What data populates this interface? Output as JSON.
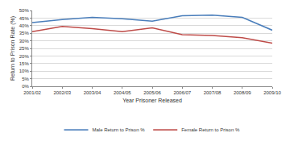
{
  "chart_data": {
    "type": "line",
    "x_label": "Year Prisoner Released",
    "y_label": "Return to Prison Rate (%)",
    "categories": [
      "2001/02",
      "2002/03",
      "2003/04",
      "2004/05",
      "2005/06",
      "2006/07",
      "2007/08",
      "2008/09",
      "2009/10"
    ],
    "series": [
      {
        "name": "Male Return to Prison %",
        "color": "#4a7ebb",
        "values": [
          42,
          44,
          45.5,
          44.5,
          43,
          46.5,
          47,
          45.5,
          37
        ]
      },
      {
        "name": "Female Return to Prison %",
        "color": "#be4b48",
        "values": [
          36,
          39.5,
          38,
          36,
          38.5,
          34,
          33.5,
          32,
          28.5
        ]
      }
    ],
    "ylim": [
      0,
      50
    ],
    "yticks": [
      {
        "value": 0,
        "label": "0%"
      },
      {
        "value": 5,
        "label": "5%"
      },
      {
        "value": 10,
        "label": "10%"
      },
      {
        "value": 15,
        "label": "15%"
      },
      {
        "value": 20,
        "label": "20%"
      },
      {
        "value": 25,
        "label": "25%"
      },
      {
        "value": 30,
        "label": "30%"
      },
      {
        "value": 35,
        "label": "35%"
      },
      {
        "value": 40,
        "label": "40%"
      },
      {
        "value": 45,
        "label": "45%"
      },
      {
        "value": 50,
        "label": "50%"
      }
    ],
    "grid": true,
    "legend": "bottom"
  }
}
